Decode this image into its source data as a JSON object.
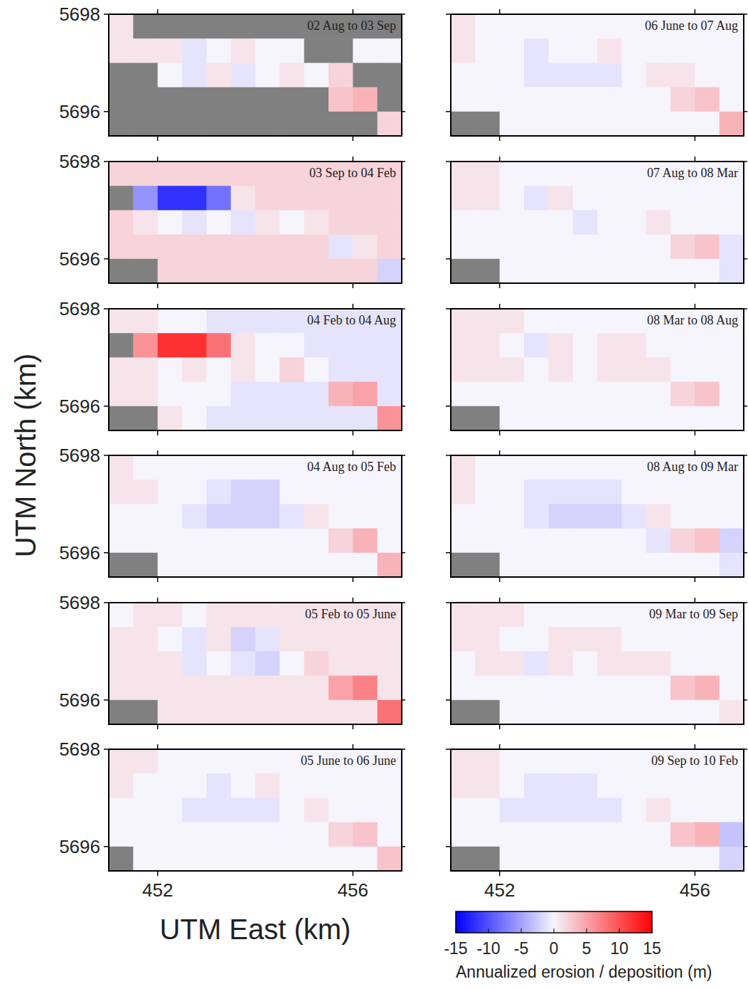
{
  "chart_data": {
    "type": "heatmap",
    "x_label": "UTM East (km)",
    "y_label": "UTM North (km)",
    "xlim": [
      451,
      457
    ],
    "ylim": [
      5695.5,
      5698
    ],
    "xticks": [
      452,
      456
    ],
    "yticks": [
      5696,
      5698
    ],
    "colorbar": {
      "label": "Annualized erosion / deposition (m)",
      "range": [
        -15,
        15
      ],
      "ticks": [
        -15,
        -10,
        -5,
        0,
        5,
        10,
        15
      ]
    },
    "panels": [
      {
        "title": "02 Aug to 03 Sep",
        "cells": [
          [
            1,
            null,
            null,
            null,
            null,
            null,
            null,
            null,
            null,
            null,
            null,
            null
          ],
          [
            1,
            1,
            1,
            -1,
            0,
            1,
            0,
            0,
            null,
            null,
            0,
            0
          ],
          [
            null,
            null,
            0,
            -1,
            1,
            -1,
            0,
            1,
            0,
            2,
            null,
            null
          ],
          [
            null,
            null,
            null,
            null,
            null,
            null,
            null,
            null,
            null,
            3,
            4,
            null
          ],
          [
            null,
            null,
            null,
            null,
            null,
            null,
            null,
            null,
            null,
            null,
            null,
            2
          ]
        ]
      },
      {
        "title": "03 Sep to 04 Feb",
        "cells": [
          [
            2,
            2,
            2,
            2,
            2,
            2,
            2,
            2,
            2,
            2,
            2,
            2
          ],
          [
            null,
            -6,
            -12,
            -12,
            -8,
            1,
            2,
            2,
            2,
            2,
            2,
            2
          ],
          [
            2,
            1,
            0,
            -1,
            0,
            -1,
            1,
            0,
            1,
            2,
            2,
            2
          ],
          [
            2,
            2,
            2,
            2,
            2,
            2,
            2,
            2,
            2,
            -1,
            1,
            2
          ],
          [
            null,
            null,
            2,
            2,
            2,
            2,
            2,
            2,
            2,
            2,
            2,
            -2
          ]
        ]
      },
      {
        "title": "04 Feb to 04 Aug",
        "cells": [
          [
            1,
            1,
            0,
            0,
            -1,
            -1,
            -1,
            -1,
            -1,
            -1,
            -1,
            -1
          ],
          [
            null,
            6,
            12,
            12,
            8,
            1,
            0,
            0,
            -1,
            -1,
            -1,
            -1
          ],
          [
            1,
            1,
            0,
            1,
            0,
            1,
            0,
            2,
            0,
            -1,
            -1,
            -1
          ],
          [
            1,
            1,
            0,
            0,
            0,
            -1,
            -1,
            -1,
            -1,
            4,
            5,
            -1
          ],
          [
            null,
            null,
            1,
            0,
            -1,
            -1,
            -1,
            -1,
            -1,
            -1,
            -1,
            6
          ]
        ]
      },
      {
        "title": "04 Aug to 05 Feb",
        "cells": [
          [
            1,
            0,
            0,
            0,
            0,
            0,
            0,
            0,
            0,
            0,
            0,
            0
          ],
          [
            1,
            1,
            0,
            0,
            -1,
            -2,
            -2,
            0,
            0,
            0,
            0,
            0
          ],
          [
            0,
            0,
            0,
            -1,
            -2,
            -2,
            -2,
            -1,
            1,
            0,
            0,
            0
          ],
          [
            0,
            0,
            0,
            0,
            0,
            0,
            0,
            0,
            0,
            2,
            4,
            0
          ],
          [
            null,
            null,
            0,
            0,
            0,
            0,
            0,
            0,
            0,
            0,
            0,
            4
          ]
        ]
      },
      {
        "title": "05 Feb to 05 June",
        "cells": [
          [
            0,
            1,
            1,
            0,
            1,
            1,
            1,
            1,
            1,
            1,
            1,
            1
          ],
          [
            1,
            1,
            0,
            -1,
            1,
            -2,
            -1,
            1,
            1,
            1,
            1,
            1
          ],
          [
            1,
            1,
            1,
            -1,
            0,
            -1,
            -2,
            0,
            2,
            1,
            1,
            1
          ],
          [
            1,
            1,
            1,
            1,
            1,
            1,
            1,
            1,
            1,
            5,
            7,
            1
          ],
          [
            null,
            null,
            1,
            1,
            1,
            1,
            1,
            1,
            1,
            1,
            1,
            8
          ]
        ]
      },
      {
        "title": "05 June to 06 June",
        "cells": [
          [
            1,
            1,
            0,
            0,
            0,
            0,
            0,
            0,
            0,
            0,
            0,
            0
          ],
          [
            1,
            0,
            0,
            0,
            -1,
            0,
            1,
            0,
            0,
            0,
            0,
            0
          ],
          [
            0,
            0,
            0,
            -1,
            -1,
            -1,
            -1,
            0,
            1,
            0,
            0,
            0
          ],
          [
            0,
            0,
            0,
            0,
            0,
            0,
            0,
            0,
            0,
            2,
            3,
            0
          ],
          [
            null,
            0,
            0,
            0,
            0,
            0,
            0,
            0,
            0,
            0,
            0,
            3
          ]
        ]
      },
      {
        "title": "06 June to 07 Aug",
        "cells": [
          [
            1,
            0,
            0,
            0,
            0,
            0,
            0,
            0,
            0,
            0,
            0,
            0
          ],
          [
            1,
            0,
            0,
            -1,
            0,
            0,
            1,
            0,
            0,
            0,
            0,
            0
          ],
          [
            0,
            0,
            0,
            -1,
            -1,
            -1,
            -1,
            0,
            1,
            1,
            0,
            0
          ],
          [
            0,
            0,
            0,
            0,
            0,
            0,
            0,
            0,
            0,
            2,
            3,
            0
          ],
          [
            null,
            null,
            0,
            0,
            0,
            0,
            0,
            0,
            0,
            0,
            0,
            4
          ]
        ]
      },
      {
        "title": "07 Aug to 08 Mar",
        "cells": [
          [
            1,
            1,
            0,
            0,
            0,
            0,
            0,
            0,
            0,
            0,
            0,
            0
          ],
          [
            1,
            1,
            0,
            -1,
            1,
            0,
            0,
            0,
            0,
            0,
            0,
            0
          ],
          [
            0,
            0,
            0,
            0,
            0,
            -1,
            0,
            0,
            1,
            0,
            0,
            0
          ],
          [
            0,
            0,
            0,
            0,
            0,
            0,
            0,
            0,
            0,
            2,
            3,
            -1
          ],
          [
            null,
            null,
            0,
            0,
            0,
            0,
            0,
            0,
            0,
            0,
            0,
            -1
          ]
        ]
      },
      {
        "title": "08 Mar to 08 Aug",
        "cells": [
          [
            1,
            1,
            1,
            0,
            0,
            0,
            0,
            0,
            0,
            0,
            0,
            0
          ],
          [
            1,
            1,
            0,
            -1,
            1,
            0,
            1,
            1,
            0,
            0,
            0,
            0
          ],
          [
            1,
            1,
            1,
            0,
            1,
            0,
            1,
            1,
            1,
            0,
            0,
            0
          ],
          [
            0,
            0,
            0,
            0,
            0,
            0,
            0,
            0,
            0,
            2,
            3,
            0
          ],
          [
            null,
            null,
            0,
            0,
            0,
            0,
            0,
            0,
            0,
            0,
            0,
            0
          ]
        ]
      },
      {
        "title": "08 Aug to 09 Mar",
        "cells": [
          [
            1,
            0,
            0,
            0,
            0,
            0,
            0,
            0,
            0,
            0,
            0,
            0
          ],
          [
            1,
            0,
            0,
            -1,
            -1,
            -1,
            -1,
            0,
            0,
            0,
            0,
            0
          ],
          [
            0,
            0,
            0,
            -1,
            -2,
            -2,
            -2,
            -1,
            1,
            0,
            0,
            0
          ],
          [
            0,
            0,
            0,
            0,
            0,
            0,
            0,
            0,
            -1,
            2,
            3,
            -2
          ],
          [
            null,
            null,
            0,
            0,
            0,
            0,
            0,
            0,
            0,
            0,
            0,
            -1
          ]
        ]
      },
      {
        "title": "09 Mar to 09 Sep",
        "cells": [
          [
            1,
            1,
            1,
            0,
            0,
            0,
            0,
            0,
            0,
            0,
            0,
            0
          ],
          [
            1,
            1,
            0,
            0,
            1,
            1,
            1,
            0,
            0,
            0,
            0,
            0
          ],
          [
            0,
            1,
            1,
            -1,
            1,
            0,
            1,
            1,
            1,
            0,
            0,
            0
          ],
          [
            0,
            0,
            0,
            0,
            0,
            0,
            0,
            0,
            0,
            3,
            4,
            0
          ],
          [
            null,
            null,
            0,
            0,
            0,
            0,
            0,
            0,
            0,
            0,
            0,
            1
          ]
        ]
      },
      {
        "title": "09 Sep to 10 Feb",
        "cells": [
          [
            1,
            1,
            0,
            0,
            0,
            0,
            0,
            0,
            0,
            0,
            0,
            0
          ],
          [
            1,
            1,
            0,
            -1,
            -1,
            -1,
            0,
            0,
            0,
            0,
            0,
            0
          ],
          [
            0,
            0,
            -1,
            -1,
            -1,
            -1,
            -1,
            0,
            1,
            0,
            0,
            0
          ],
          [
            0,
            0,
            0,
            0,
            0,
            0,
            0,
            0,
            0,
            3,
            4,
            -3
          ],
          [
            null,
            null,
            0,
            0,
            0,
            0,
            0,
            0,
            0,
            0,
            0,
            -2
          ]
        ]
      }
    ]
  }
}
